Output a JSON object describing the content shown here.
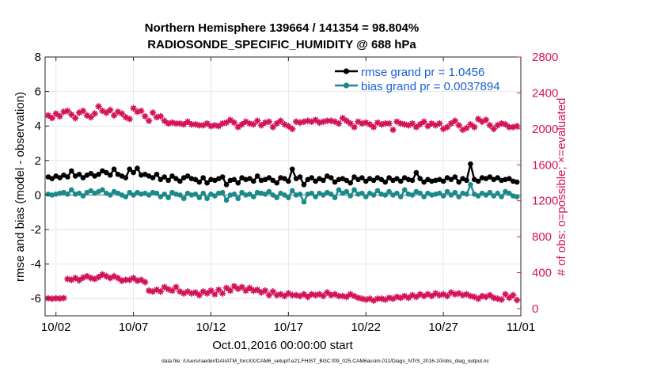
{
  "chart_data": {
    "type": "line",
    "title_line1": "Northern Hemisphere 139664 / 141354 = 98.804%",
    "title_line2": "RADIOSONDE_SPECIFIC_HUMIDITY @ 688 hPa",
    "xlabel": "Oct.01,2016 00:00:00 start",
    "ylabel_left": "rmse and bias (model - observation)",
    "ylabel_right": "# of obs: o=possible; ×=evaluated",
    "footer": "data file: /Users/raeder/DAI/ATM_forcXX/CAM6_setup/f.e21.FHIST_BGC.f09_025.CAM6assim.011/Diags_NTrS_2016-10/obs_diag_output.nc",
    "xlim": [
      1.3,
      32.0
    ],
    "ylim_left": [
      -7,
      8
    ],
    "ylim_right": [
      -80,
      2800
    ],
    "x_ticks": [
      2,
      7,
      12,
      17,
      22,
      27,
      32
    ],
    "x_tick_labels": [
      "10/02",
      "10/07",
      "10/12",
      "10/17",
      "10/22",
      "10/27",
      "11/01"
    ],
    "y_left_ticks": [
      -6,
      -4,
      -2,
      0,
      2,
      4,
      6,
      8
    ],
    "y_left_tick_labels": [
      "-6",
      "-4",
      "-2",
      "0",
      "2",
      "4",
      "6",
      "8"
    ],
    "y_right_ticks": [
      0,
      400,
      800,
      1200,
      1600,
      2000,
      2400,
      2800
    ],
    "y_right_tick_labels": [
      "0",
      "400",
      "800",
      "1200",
      "1600",
      "2000",
      "2400",
      "2800"
    ],
    "legend": {
      "position": "top-right",
      "entries": [
        {
          "label": "rmse grand pr = 1.0456",
          "color": "#000000"
        },
        {
          "label": "bias grand pr = 0.0037894",
          "color": "#1a8a8a"
        }
      ]
    },
    "colors": {
      "rmse": "#000000",
      "bias": "#1a8a8a",
      "obs": "#d4145a",
      "zero_line": "#888888"
    },
    "x": [
      1.5,
      1.75,
      2.0,
      2.25,
      2.5,
      2.75,
      3.0,
      3.25,
      3.5,
      3.75,
      4.0,
      4.25,
      4.5,
      4.75,
      5.0,
      5.25,
      5.5,
      5.75,
      6.0,
      6.25,
      6.5,
      6.75,
      7.0,
      7.25,
      7.5,
      7.75,
      8.0,
      8.25,
      8.5,
      8.75,
      9.0,
      9.25,
      9.5,
      9.75,
      10.0,
      10.25,
      10.5,
      10.75,
      11.0,
      11.25,
      11.5,
      11.75,
      12.0,
      12.25,
      12.5,
      12.75,
      13.0,
      13.25,
      13.5,
      13.75,
      14.0,
      14.25,
      14.5,
      14.75,
      15.0,
      15.25,
      15.5,
      15.75,
      16.0,
      16.25,
      16.5,
      16.75,
      17.0,
      17.25,
      17.5,
      17.75,
      18.0,
      18.25,
      18.5,
      18.75,
      19.0,
      19.25,
      19.5,
      19.75,
      20.0,
      20.25,
      20.5,
      20.75,
      21.0,
      21.25,
      21.5,
      21.75,
      22.0,
      22.25,
      22.5,
      22.75,
      23.0,
      23.25,
      23.5,
      23.75,
      24.0,
      24.25,
      24.5,
      24.75,
      25.0,
      25.25,
      25.5,
      25.75,
      26.0,
      26.25,
      26.5,
      26.75,
      27.0,
      27.25,
      27.5,
      27.75,
      28.0,
      28.25,
      28.5,
      28.75,
      29.0,
      29.25,
      29.5,
      29.75,
      30.0,
      30.25,
      30.5,
      30.75,
      31.0,
      31.25,
      31.5,
      31.75
    ],
    "series": [
      {
        "name": "rmse",
        "values": [
          1.05,
          0.95,
          1.1,
          1.0,
          1.15,
          1.05,
          1.4,
          1.1,
          1.2,
          1.0,
          1.15,
          1.25,
          1.1,
          1.2,
          1.4,
          1.3,
          1.15,
          1.5,
          1.2,
          1.1,
          1.0,
          1.5,
          1.3,
          1.55,
          1.15,
          1.2,
          1.1,
          1.0,
          1.2,
          0.9,
          1.05,
          0.85,
          1.1,
          0.95,
          0.8,
          1.0,
          1.1,
          0.95,
          0.9,
          0.75,
          1.0,
          0.7,
          0.9,
          0.85,
          0.95,
          1.05,
          0.6,
          0.85,
          0.9,
          0.7,
          1.0,
          0.9,
          0.95,
          0.8,
          1.1,
          0.85,
          0.9,
          1.0,
          0.85,
          0.7,
          1.0,
          0.95,
          0.8,
          1.5,
          0.95,
          1.05,
          0.6,
          0.9,
          1.0,
          0.8,
          0.95,
          0.85,
          1.1,
          1.0,
          0.75,
          0.9,
          0.95,
          0.85,
          0.7,
          1.05,
          0.9,
          1.0,
          0.8,
          0.95,
          0.85,
          1.0,
          0.9,
          0.75,
          1.0,
          0.85,
          0.95,
          0.8,
          1.0,
          0.9,
          0.85,
          1.3,
          0.95,
          0.75,
          0.9,
          0.8,
          0.85,
          0.9,
          0.8,
          1.0,
          0.9,
          1.05,
          0.75,
          0.95,
          0.85,
          1.8,
          0.9,
          0.8,
          1.0,
          0.95,
          1.05,
          0.9,
          1.0,
          0.85,
          0.9,
          0.95,
          0.8,
          0.75
        ]
      },
      {
        "name": "bias",
        "values": [
          0.05,
          0.0,
          0.05,
          0.1,
          0.15,
          0.05,
          0.3,
          0.05,
          0.1,
          -0.05,
          0.15,
          0.25,
          0.1,
          0.2,
          0.3,
          0.1,
          0.0,
          0.2,
          0.1,
          0.0,
          -0.1,
          0.15,
          0.0,
          0.15,
          0.05,
          0.1,
          0.0,
          0.15,
          0.1,
          -0.1,
          0.05,
          -0.15,
          0.15,
          0.05,
          0.0,
          -0.2,
          0.1,
          0.0,
          0.05,
          -0.15,
          0.1,
          -0.2,
          0.05,
          -0.05,
          0.1,
          0.15,
          -0.3,
          0.0,
          0.05,
          -0.2,
          0.15,
          0.0,
          0.05,
          -0.1,
          0.15,
          0.1,
          0.05,
          0.2,
          0.0,
          -0.15,
          0.1,
          0.0,
          -0.15,
          0.25,
          0.0,
          0.05,
          -0.4,
          0.05,
          0.1,
          -0.1,
          0.1,
          0.0,
          0.15,
          0.05,
          -0.15,
          0.3,
          0.1,
          0.2,
          -0.05,
          0.3,
          0.05,
          0.1,
          -0.1,
          0.1,
          0.0,
          0.25,
          0.05,
          0.0,
          0.2,
          0.0,
          0.1,
          -0.1,
          0.3,
          0.05,
          0.0,
          0.2,
          0.1,
          -0.1,
          0.1,
          0.0,
          0.05,
          0.1,
          -0.05,
          0.2,
          0.0,
          0.15,
          -0.1,
          0.1,
          0.05,
          0.6,
          0.05,
          -0.05,
          0.1,
          0.0,
          0.15,
          -0.05,
          0.1,
          -0.1,
          0.2,
          0.1,
          -0.05,
          -0.1
        ]
      },
      {
        "name": "obs_possible",
        "values": [
          2150,
          2120,
          2170,
          2140,
          2190,
          2200,
          2160,
          2120,
          2180,
          2200,
          2150,
          2130,
          2170,
          2250,
          2200,
          2180,
          2210,
          2150,
          2190,
          2170,
          2130,
          2110,
          2230,
          2190,
          2200,
          2140,
          2090,
          2180,
          2130,
          2140,
          2090,
          2060,
          2070,
          2060,
          2060,
          2050,
          2080,
          2050,
          2050,
          2040,
          2040,
          2060,
          2030,
          2040,
          2030,
          2060,
          2070,
          2100,
          2070,
          2020,
          2050,
          2080,
          2060,
          2050,
          2090,
          2040,
          2070,
          2080,
          2020,
          2060,
          2090,
          2050,
          2030,
          2000,
          2080,
          2070,
          2080,
          2090,
          2080,
          2100,
          2070,
          2080,
          2090,
          2090,
          2080,
          2060,
          2120,
          2090,
          2060,
          2020,
          2080,
          2060,
          2070,
          2050,
          2020,
          2070,
          2050,
          2060,
          2060,
          1990,
          2080,
          2060,
          2050,
          2040,
          2060,
          2020,
          2050,
          2080,
          2030,
          2060,
          2040,
          2060,
          2000,
          2020,
          2060,
          2090,
          2040,
          1990,
          2010,
          2050,
          2020,
          2110,
          2080,
          2100,
          2040,
          2000,
          2040,
          2060,
          2050,
          2020,
          2020,
          2030
        ]
      },
      {
        "name": "obs_evaluated",
        "values": [
          115,
          110,
          115,
          112,
          118,
          330,
          320,
          340,
          315,
          345,
          360,
          340,
          330,
          350,
          380,
          360,
          340,
          360,
          340,
          310,
          320,
          320,
          340,
          310,
          320,
          295,
          200,
          190,
          210,
          190,
          240,
          215,
          200,
          240,
          190,
          170,
          190,
          170,
          180,
          150,
          190,
          170,
          200,
          160,
          210,
          170,
          230,
          200,
          250,
          220,
          240,
          200,
          230,
          200,
          210,
          180,
          200,
          150,
          190,
          150,
          160,
          140,
          170,
          150,
          150,
          140,
          160,
          130,
          160,
          150,
          160,
          140,
          180,
          150,
          160,
          140,
          140,
          130,
          160,
          140,
          120,
          110,
          100,
          110,
          90,
          110,
          110,
          100,
          120,
          110,
          130,
          120,
          140,
          120,
          150,
          130,
          160,
          140,
          160,
          140,
          170,
          150,
          160,
          140,
          180,
          160,
          170,
          150,
          160,
          140,
          130,
          110,
          140,
          130,
          150,
          120,
          110,
          100,
          160,
          120,
          150,
          95
        ]
      }
    ]
  }
}
